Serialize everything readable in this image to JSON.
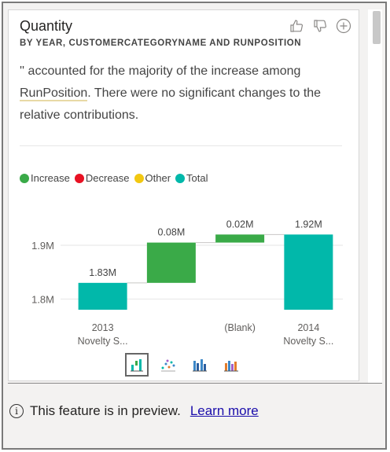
{
  "card": {
    "title": "Quantity",
    "subtitle": "BY YEAR, CUSTOMERCATEGORYNAME AND RUNPOSITION",
    "insight_part1": "'' accounted for the majority of the increase among ",
    "insight_underlined": "RunPosition",
    "insight_part2": ". There were no significant changes to the relative contributions."
  },
  "icons": {
    "like": "thumbs-up-icon",
    "dislike": "thumbs-down-icon",
    "add": "plus-circle-icon"
  },
  "legend": [
    {
      "label": "Increase",
      "color": "#3aaa48"
    },
    {
      "label": "Decrease",
      "color": "#e81123"
    },
    {
      "label": "Other",
      "color": "#f2c811"
    },
    {
      "label": "Total",
      "color": "#01b8aa"
    }
  ],
  "chart_data": {
    "type": "waterfall",
    "ylim": [
      1.78,
      1.96
    ],
    "yticks": [
      {
        "value": 1.8,
        "label": "1.8M"
      },
      {
        "value": 1.9,
        "label": "1.9M"
      }
    ],
    "bars": [
      {
        "label": "1.83M",
        "start": 1.78,
        "end": 1.83,
        "kind": "Total",
        "category": [
          "2013",
          "Novelty S..."
        ]
      },
      {
        "label": "0.08M",
        "start": 1.83,
        "end": 1.905,
        "kind": "Increase",
        "category": [
          "",
          ""
        ]
      },
      {
        "label": "0.02M",
        "start": 1.905,
        "end": 1.92,
        "kind": "Increase",
        "category": [
          "(Blank)",
          ""
        ]
      },
      {
        "label": "1.92M",
        "start": 1.78,
        "end": 1.92,
        "kind": "Total",
        "category": [
          "2014",
          "Novelty S..."
        ]
      }
    ]
  },
  "chart_types": [
    "waterfall-chart-icon",
    "scatter-chart-icon",
    "column-chart-icon",
    "area-chart-icon"
  ],
  "footer": {
    "info_icon": "i",
    "message": "This feature is in preview.",
    "link": "Learn more"
  }
}
